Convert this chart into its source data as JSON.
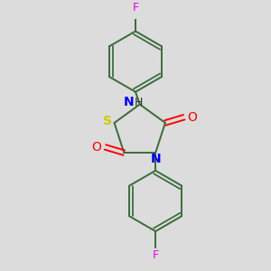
{
  "background_color": "#dcdcdc",
  "bond_color": "#3a6b3a",
  "S_color": "#cccc00",
  "N_color": "#0000ee",
  "O_color": "#ff0000",
  "F_color": "#ee00ee",
  "figsize": [
    3.0,
    3.0
  ],
  "dpi": 100,
  "xlim": [
    -2.2,
    2.2
  ],
  "ylim": [
    -3.5,
    3.5
  ]
}
